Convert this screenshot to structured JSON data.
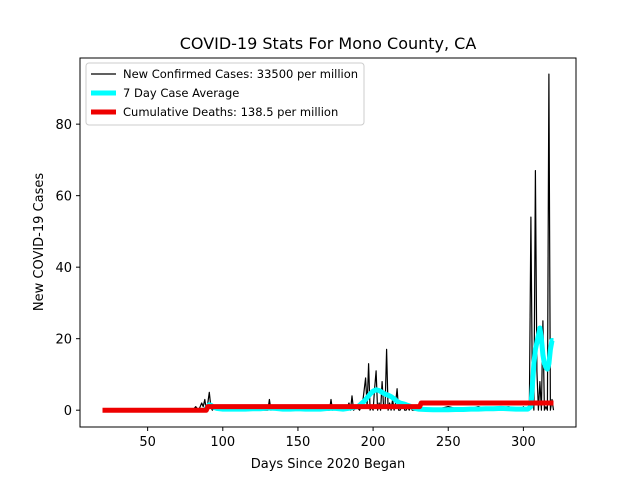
{
  "chart_data": {
    "type": "line",
    "title": "COVID-19 Stats For Mono County, CA",
    "xlabel": "Days Since 2020 Began",
    "ylabel": "New COVID-19 Cases",
    "xlim": [
      5,
      335
    ],
    "ylim": [
      -4.7,
      98.5
    ],
    "xticks": [
      50,
      100,
      150,
      200,
      250,
      300
    ],
    "yticks": [
      0,
      20,
      40,
      60,
      80
    ],
    "grid": false,
    "legend_position": "top-left",
    "series": [
      {
        "name": "New Confirmed Cases: 33500 per million",
        "color": "#000000",
        "style": "thin-line",
        "x": [
          20,
          75,
          80,
          82,
          84,
          86,
          87,
          88,
          89,
          90,
          91,
          92,
          93,
          95,
          97,
          99,
          101,
          103,
          105,
          108,
          110,
          112,
          115,
          118,
          121,
          124,
          127,
          130,
          131,
          132,
          135,
          138,
          141,
          144,
          147,
          150,
          153,
          156,
          159,
          162,
          165,
          168,
          171,
          172,
          173,
          176,
          179,
          182,
          184,
          185,
          186,
          187,
          189,
          191,
          193,
          195,
          196,
          197,
          198,
          199,
          200,
          201,
          202,
          203,
          204,
          205,
          206,
          207,
          208,
          209,
          210,
          211,
          212,
          213,
          214,
          215,
          216,
          217,
          218,
          219,
          220,
          221,
          222,
          223,
          224,
          225,
          226,
          228,
          230,
          240,
          250,
          260,
          270,
          280,
          290,
          298,
          300,
          302,
          303,
          304,
          305,
          306,
          307,
          308,
          309,
          310,
          311,
          312,
          313,
          314,
          315,
          316,
          317,
          318,
          319,
          320
        ],
        "y": [
          0,
          0,
          0,
          1,
          0,
          2,
          1,
          3,
          0,
          2,
          5,
          1,
          0,
          1,
          0,
          0,
          1,
          0,
          0,
          1,
          0,
          0,
          1,
          0,
          0,
          1,
          0,
          0,
          3,
          0,
          1,
          0,
          0,
          1,
          0,
          0,
          1,
          0,
          0,
          0,
          1,
          0,
          0,
          3,
          0,
          1,
          0,
          0,
          2,
          0,
          4,
          0,
          1,
          0,
          2,
          9,
          1,
          13,
          0,
          1,
          0,
          6,
          11,
          0,
          2,
          0,
          8,
          1,
          1,
          17,
          0,
          2,
          0,
          3,
          0,
          2,
          6,
          0,
          0,
          1,
          2,
          0,
          0,
          1,
          0,
          1,
          0,
          0,
          0,
          0,
          1,
          0,
          1,
          0,
          1,
          0,
          1,
          0,
          0,
          2,
          54,
          5,
          0,
          67,
          11,
          0,
          8,
          0,
          25,
          0,
          1,
          0,
          94,
          0,
          3,
          0
        ]
      },
      {
        "name": "7 Day Case Average",
        "color": "#00ffff",
        "style": "thick-line",
        "x": [
          88,
          89,
          90,
          91,
          92,
          93,
          94,
          96,
          98,
          100,
          105,
          110,
          115,
          120,
          125,
          130,
          135,
          140,
          145,
          150,
          155,
          160,
          165,
          170,
          175,
          180,
          185,
          190,
          192,
          194,
          196,
          198,
          200,
          202,
          204,
          206,
          208,
          210,
          212,
          214,
          216,
          218,
          220,
          222,
          224,
          226,
          228,
          230,
          235,
          240,
          245,
          250,
          255,
          260,
          265,
          270,
          275,
          280,
          285,
          290,
          295,
          300,
          303,
          305,
          306,
          307,
          308,
          309,
          310,
          311,
          312,
          313,
          314,
          315,
          316,
          317,
          318,
          319,
          320
        ],
        "y": [
          0,
          0.5,
          1.1,
          1.5,
          1.4,
          1.1,
          0.8,
          0.5,
          0.4,
          0.3,
          0.3,
          0.3,
          0.3,
          0.4,
          0.4,
          0.6,
          0.5,
          0.3,
          0.3,
          0.4,
          0.3,
          0.3,
          0.3,
          0.5,
          0.5,
          0.3,
          0.6,
          1.0,
          1.8,
          2.5,
          3.5,
          4.5,
          5.3,
          5.7,
          5.5,
          5.0,
          4.5,
          4.2,
          3.8,
          3.2,
          2.5,
          2.0,
          1.8,
          1.5,
          1.2,
          0.9,
          0.5,
          0.3,
          0.2,
          0.1,
          0.1,
          0.1,
          0.2,
          0.2,
          0.3,
          0.3,
          0.4,
          0.4,
          0.5,
          0.4,
          0.3,
          0.3,
          0.3,
          1.0,
          7.0,
          13.0,
          17.0,
          19.0,
          21.0,
          23.0,
          20.0,
          15.5,
          13.0,
          12.0,
          11.5,
          13.0,
          17.0,
          19.5,
          19.5
        ]
      },
      {
        "name": "Cumulative Deaths: 138.5 per million",
        "color": "#ee0000",
        "style": "thick-line",
        "x": [
          20,
          89,
          90,
          231,
          232,
          320
        ],
        "y": [
          0,
          0,
          1,
          1,
          2,
          2
        ]
      }
    ]
  },
  "legend_title_bind": "chart_data.title"
}
